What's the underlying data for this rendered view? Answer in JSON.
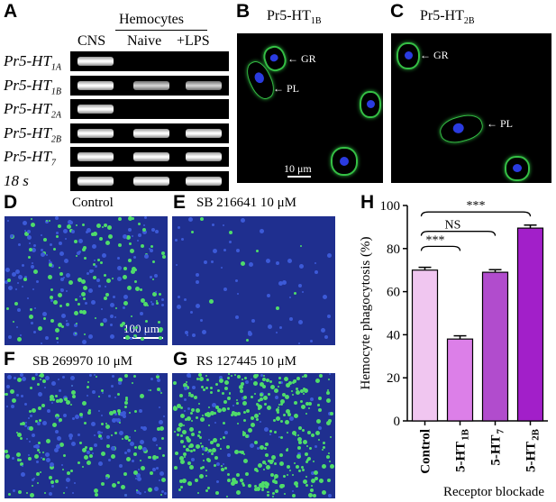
{
  "panels": {
    "a": "A",
    "b": "B",
    "c": "C",
    "d": "D",
    "e": "E",
    "f": "F",
    "g": "G",
    "h": "H"
  },
  "gel": {
    "group_header": "Hemocytes",
    "lanes": [
      "CNS",
      "Naive",
      "+LPS"
    ],
    "rows": [
      {
        "base": "Pr5-HT",
        "sub": "1A",
        "bands": [
          1,
          0,
          0
        ]
      },
      {
        "base": "Pr5-HT",
        "sub": "1B",
        "bands": [
          1,
          1,
          1
        ]
      },
      {
        "base": "Pr5-HT",
        "sub": "2A",
        "bands": [
          1,
          0,
          0
        ]
      },
      {
        "base": "Pr5-HT",
        "sub": "2B",
        "bands": [
          1,
          1,
          1
        ]
      },
      {
        "base": "Pr5-HT",
        "sub": "7",
        "bands": [
          1,
          1,
          1
        ]
      },
      {
        "base": "18 s",
        "sub": "",
        "bands": [
          1,
          1,
          1
        ]
      }
    ]
  },
  "micro_b": {
    "title": "Pr5-HT",
    "title_sub": "1B",
    "gr": "GR",
    "pl": "PL",
    "scale": "10 μm"
  },
  "micro_c": {
    "title": "Pr5-HT",
    "title_sub": "2B",
    "gr": "GR",
    "pl": "PL"
  },
  "fields": {
    "d": {
      "caption": "Control",
      "scale": "100 μm"
    },
    "e": {
      "caption": "SB 216641 10 μM"
    },
    "f": {
      "caption": "SB 269970 10 μM"
    },
    "g": {
      "caption": "RS 127445 10 μM"
    }
  },
  "chart_data": {
    "type": "bar",
    "categories": [
      "Control",
      "5-HT1B",
      "5-HT7",
      "5-HT2B"
    ],
    "values": [
      70,
      38,
      69,
      89.5
    ],
    "errors": [
      1.3,
      1.5,
      1.2,
      1.4
    ],
    "colors": [
      "#f0c6f0",
      "#dc7fe8",
      "#b14ccd",
      "#a21fc9"
    ],
    "ylabel": "Hemocyte phagocytosis (%)",
    "xlabel": "Receptor blockade",
    "ylim": [
      0,
      100
    ],
    "yticks": [
      "0",
      "20",
      "40",
      "60",
      "80",
      "100"
    ],
    "significance": [
      {
        "from": "Control",
        "to": "5-HT1B",
        "label": "***"
      },
      {
        "from": "Control",
        "to": "5-HT7",
        "label": "NS"
      },
      {
        "from": "Control",
        "to": "5-HT2B",
        "label": "***"
      }
    ]
  }
}
